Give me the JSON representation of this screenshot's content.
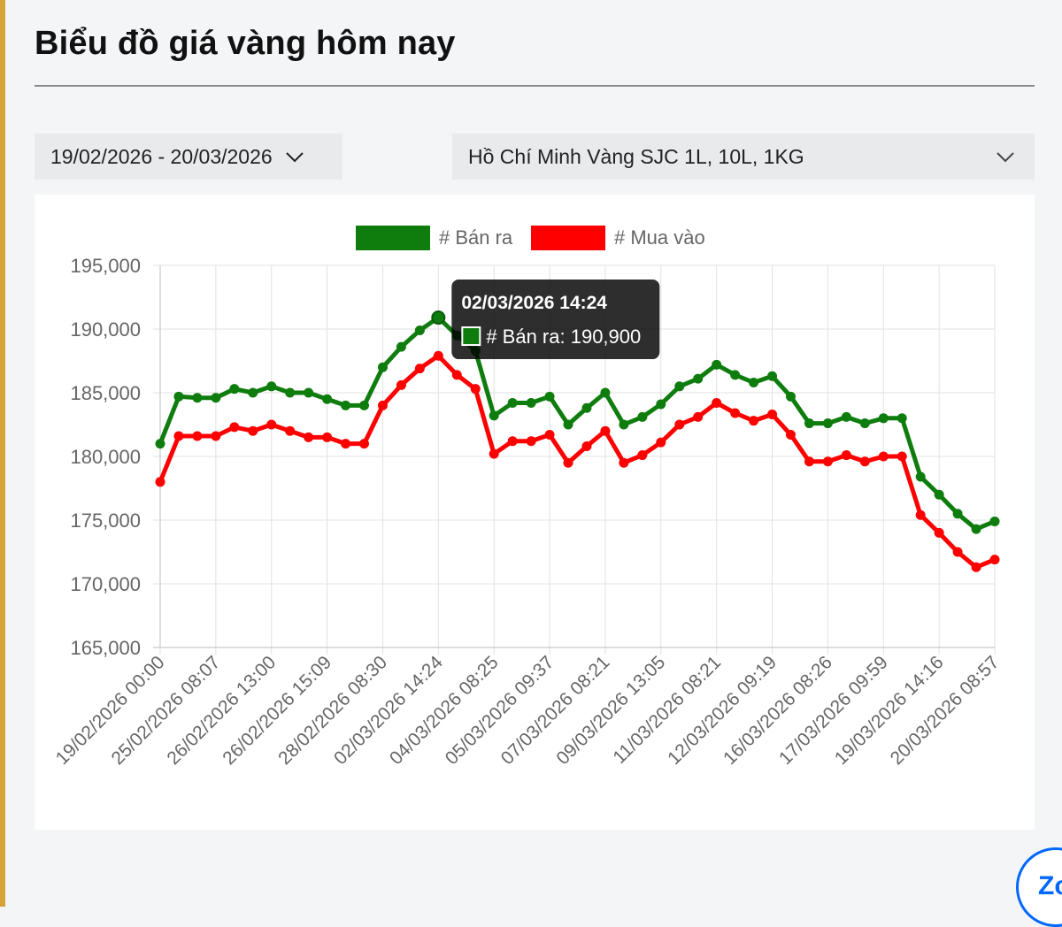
{
  "page": {
    "title": "Biểu đồ giá vàng hôm nay"
  },
  "filters": {
    "date_range": "19/02/2026 - 20/03/2026",
    "location": "Hồ Chí Minh Vàng SJC 1L, 10L, 1KG"
  },
  "widget": {
    "label": "Zc"
  },
  "colors": {
    "sell": "#0e7d0e",
    "buy": "#ff0000",
    "accent": "#d6a23a"
  },
  "chart_data": {
    "type": "line",
    "y_ticks": [
      "195,000",
      "190,000",
      "185,000",
      "180,000",
      "175,000",
      "170,000",
      "165,000"
    ],
    "ylim": [
      165000,
      195000
    ],
    "x_tick_labels": [
      "19/02/2026 00:00",
      "25/02/2026 08:07",
      "26/02/2026 13:00",
      "26/02/2026 15:09",
      "28/02/2026 08:30",
      "02/03/2026 14:24",
      "04/03/2026 08:25",
      "05/03/2026 09:37",
      "07/03/2026 08:21",
      "09/03/2026 13:05",
      "11/03/2026 08:21",
      "12/03/2026 09:19",
      "16/03/2026 08:26",
      "17/03/2026 09:59",
      "19/03/2026 14:16",
      "20/03/2026 08:57"
    ],
    "series": [
      {
        "name": "# Bán ra",
        "values": [
          181000,
          184700,
          184600,
          184600,
          185300,
          185000,
          185500,
          185000,
          185000,
          184500,
          184000,
          184000,
          187000,
          188600,
          189900,
          190900,
          189500,
          188300,
          183200,
          184200,
          184200,
          184700,
          182500,
          183800,
          185000,
          182500,
          183100,
          184100,
          185500,
          186100,
          187200,
          186400,
          185800,
          186300,
          184700,
          182600,
          182600,
          183100,
          182600,
          183000,
          183000,
          178400,
          177000,
          175500,
          174300,
          174900
        ]
      },
      {
        "name": "# Mua vào",
        "values": [
          178000,
          181600,
          181600,
          181600,
          182300,
          182000,
          182500,
          182000,
          181500,
          181500,
          181000,
          181000,
          184000,
          185600,
          186900,
          187900,
          186400,
          185300,
          180200,
          181200,
          181200,
          181700,
          179500,
          180800,
          182000,
          179500,
          180100,
          181100,
          182500,
          183100,
          184200,
          183400,
          182800,
          183300,
          181700,
          179600,
          179600,
          180100,
          179600,
          180000,
          180000,
          175400,
          174000,
          172500,
          171300,
          171900
        ]
      }
    ],
    "tooltip": {
      "title": "02/03/2026 14:24",
      "body": "# Bán ra: 190,900",
      "series_index": 0,
      "point_index": 15
    }
  }
}
